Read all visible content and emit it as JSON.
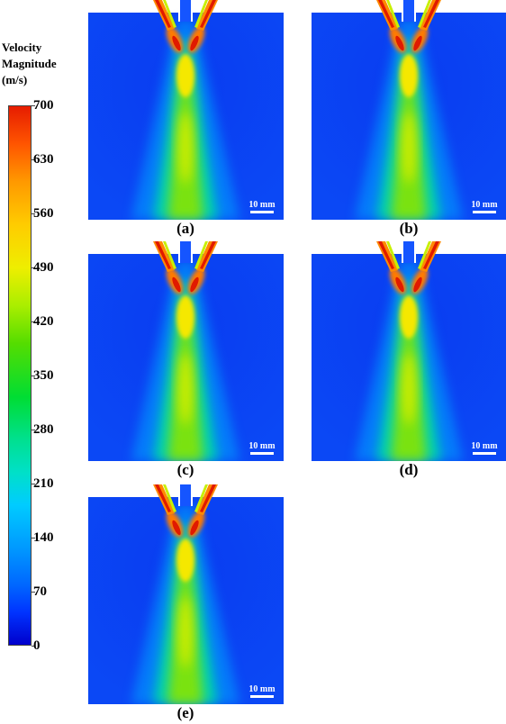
{
  "colorbar": {
    "title_lines": [
      "Velocity",
      "Magnitude",
      "(m/s)"
    ],
    "ticks": [
      "700",
      "630",
      "560",
      "490",
      "420",
      "350",
      "280",
      "210",
      "140",
      "70",
      "0"
    ],
    "colors": [
      "#0000cc",
      "#0066ff",
      "#00ccff",
      "#00dd33",
      "#eeee00",
      "#ff9900",
      "#e61c00"
    ]
  },
  "panels": [
    {
      "label": "(a)",
      "scale_text": "10 mm"
    },
    {
      "label": "(b)",
      "scale_text": "10 mm"
    },
    {
      "label": "(c)",
      "scale_text": "10 mm"
    },
    {
      "label": "(d)",
      "scale_text": "10 mm"
    },
    {
      "label": "(e)",
      "scale_text": "10 mm"
    }
  ]
}
